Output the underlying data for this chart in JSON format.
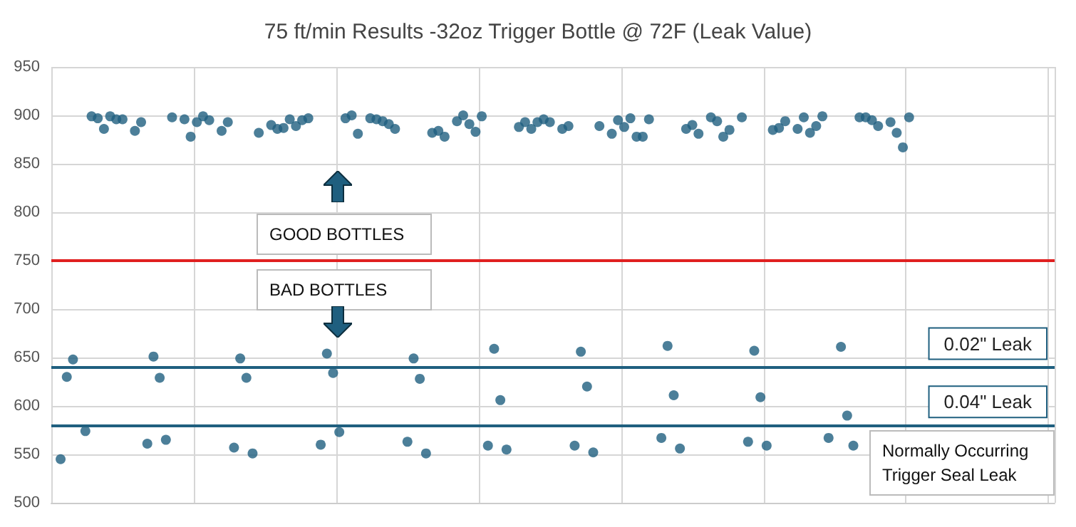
{
  "chart_data": {
    "type": "scatter",
    "title": "75 ft/min Results -32oz Trigger Bottle @ 72F (Leak Value)",
    "categories": [
      null,
      null,
      null,
      null,
      null,
      null,
      null,
      null,
      null,
      null,
      null,
      null,
      null,
      null,
      null,
      null,
      null,
      null,
      null,
      null,
      null,
      null,
      null,
      null,
      null,
      null,
      null,
      null,
      null,
      null,
      null,
      null,
      null,
      null,
      null,
      null,
      null,
      null,
      null,
      null,
      null,
      null,
      null,
      null,
      null,
      null,
      null,
      null,
      null,
      null,
      null,
      null,
      null,
      null,
      null,
      null,
      null,
      null,
      null,
      null,
      null,
      null,
      null,
      null,
      null,
      null,
      null,
      null,
      null,
      null,
      null,
      null,
      null,
      null,
      null,
      null,
      null,
      null,
      null,
      null,
      null,
      null,
      null,
      null,
      null,
      null,
      null,
      null,
      null,
      null,
      null,
      null,
      null,
      null,
      null,
      null,
      null,
      null,
      null,
      null,
      null,
      null,
      null,
      null,
      null,
      null,
      null,
      null,
      null,
      null,
      null,
      null,
      null,
      null,
      null,
      null,
      null,
      null,
      null,
      null,
      null,
      null,
      null,
      null,
      null,
      null,
      null,
      null,
      null,
      null,
      null,
      null,
      null,
      null,
      null,
      null,
      null,
      null,
      null,
      null,
      null,
      null,
      null,
      null,
      null,
      null,
      null,
      null,
      null,
      null,
      null,
      null,
      null,
      null,
      null,
      null,
      null,
      null,
      null,
      null,
      null,
      null
    ],
    "values": [
      null,
      545,
      630,
      648,
      null,
      574,
      899,
      897,
      886,
      899,
      896,
      896,
      null,
      884,
      893,
      561,
      651,
      629,
      565,
      898,
      null,
      896,
      878,
      893,
      899,
      895,
      null,
      884,
      893,
      557,
      649,
      629,
      551,
      882,
      null,
      890,
      886,
      887,
      896,
      889,
      895,
      897,
      null,
      560,
      654,
      634,
      573,
      897,
      900,
      881,
      null,
      897,
      896,
      894,
      891,
      886,
      null,
      563,
      649,
      628,
      551,
      882,
      884,
      878,
      null,
      894,
      900,
      891,
      883,
      899,
      559,
      659,
      606,
      555,
      null,
      888,
      893,
      886,
      893,
      896,
      893,
      null,
      886,
      889,
      559,
      656,
      620,
      552,
      889,
      null,
      881,
      895,
      888,
      897,
      878,
      878,
      896,
      null,
      567,
      662,
      611,
      556,
      886,
      890,
      881,
      null,
      898,
      894,
      878,
      885,
      null,
      898,
      563,
      657,
      609,
      559,
      885,
      887,
      894,
      null,
      886,
      898,
      882,
      889,
      899,
      567,
      null,
      661,
      590,
      559,
      898,
      898,
      895,
      889,
      null,
      893,
      882,
      867,
      898,
      null,
      null,
      null,
      null,
      null,
      null,
      null,
      null,
      null,
      null,
      null,
      null,
      null,
      null,
      null,
      null,
      null,
      null,
      null,
      null,
      null,
      null,
      null
    ],
    "color": "#1f5f7f",
    "marker": "circle",
    "ylim": [
      500,
      950
    ],
    "yticks": [
      500,
      550,
      600,
      650,
      700,
      750,
      800,
      850,
      900,
      950
    ],
    "tick_labels": "y",
    "grid": true,
    "ref_lines": [
      {
        "axis": "y",
        "value": 750,
        "color": "#e02020"
      },
      {
        "axis": "y",
        "value": 640,
        "label": "0.02\" Leak",
        "color": "#1f5f7f"
      },
      {
        "axis": "y",
        "value": 580,
        "label": "0.04\" Leak",
        "color": "#1f5f7f"
      }
    ],
    "annotations": [
      "GOOD BOTTLES",
      "BAD BOTTLES",
      "Normally Occurring Trigger Seal Leak"
    ]
  }
}
